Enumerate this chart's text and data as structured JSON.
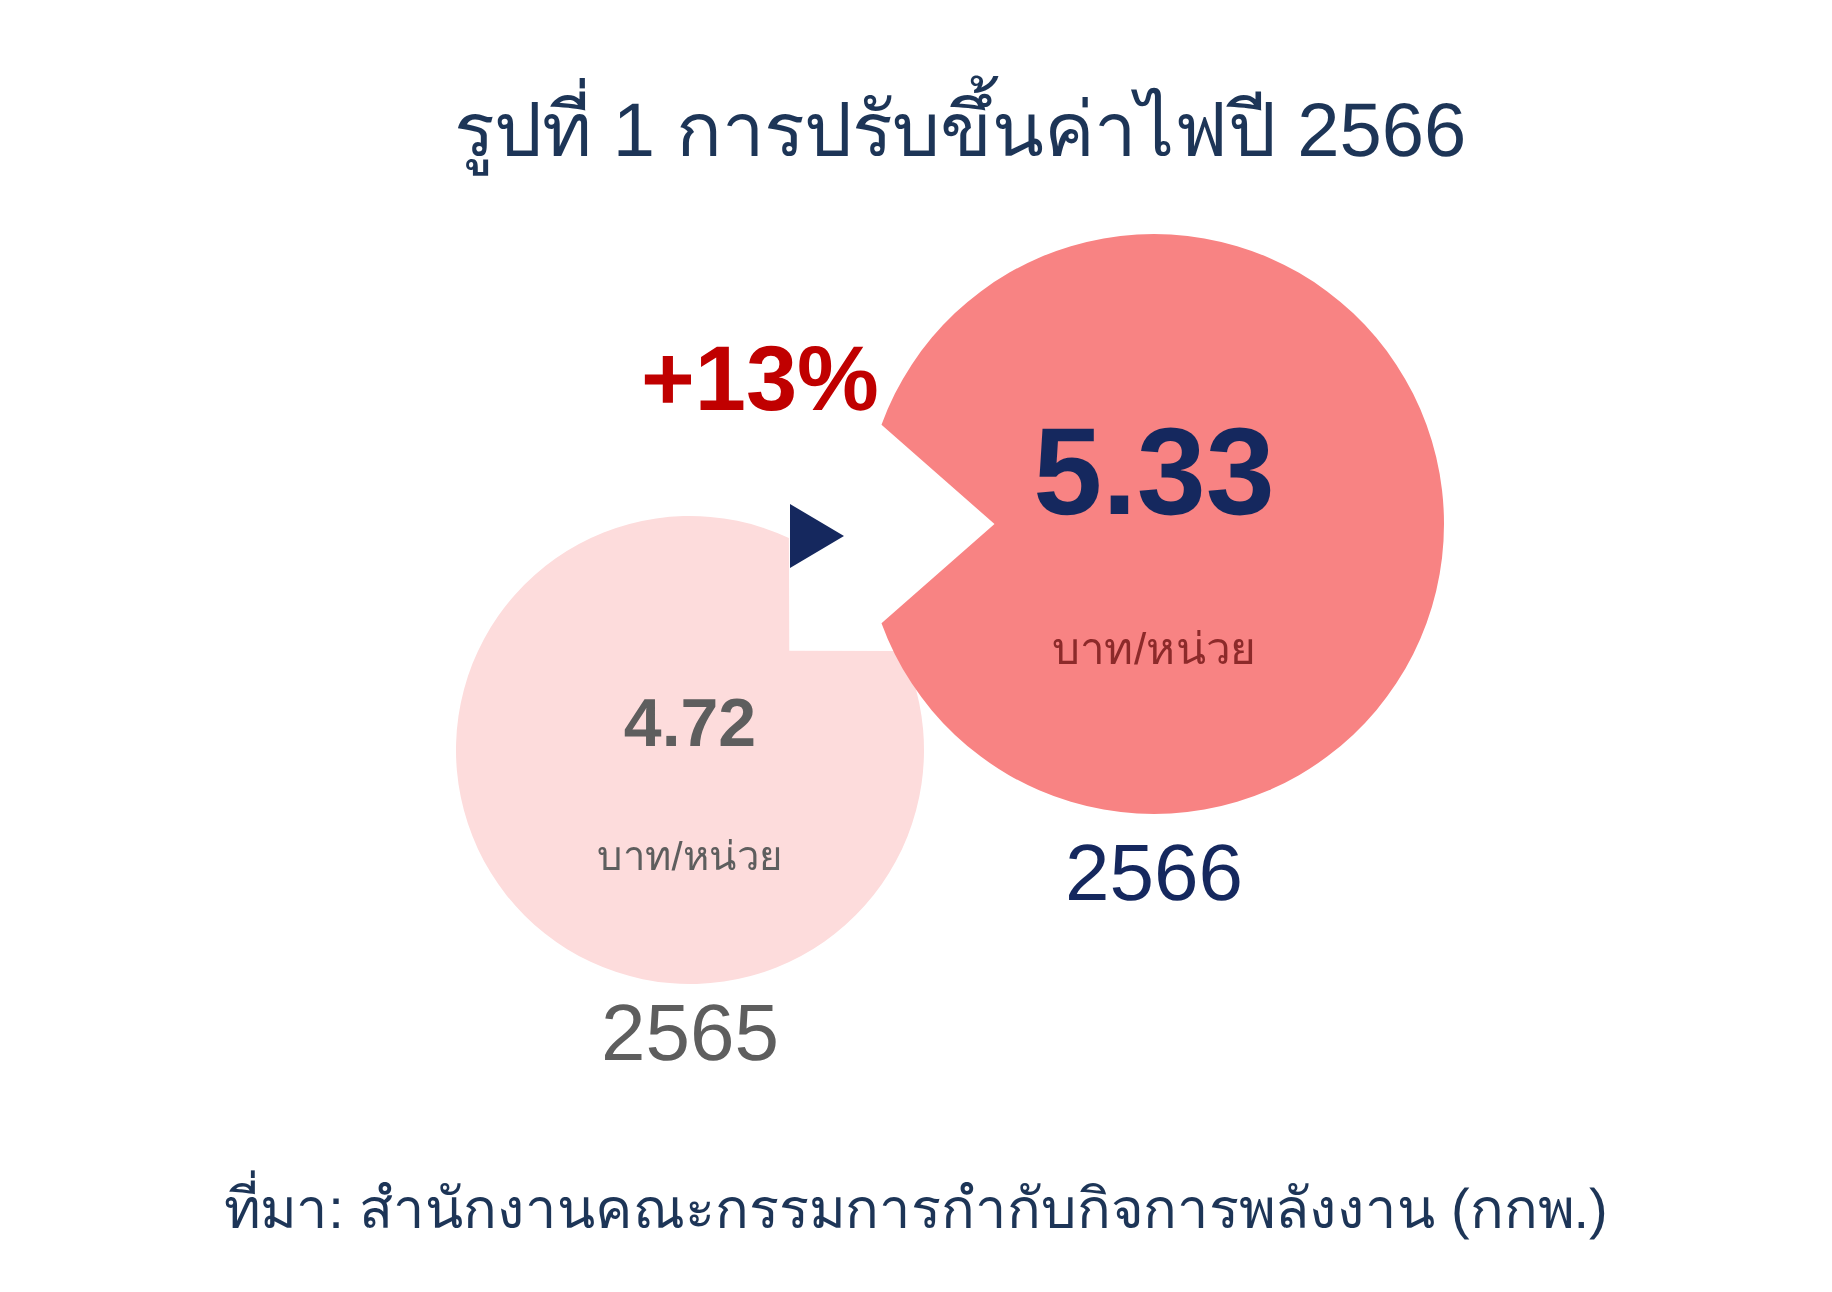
{
  "chart_data": {
    "type": "other",
    "title": "รูปที่ 1 การปรับขึ้นค่าไฟปี 2566",
    "categories": [
      "2565",
      "2566"
    ],
    "values": [
      4.72,
      5.33
    ],
    "data_labels": true,
    "colors": [
      "#fddcdc",
      "#f88383"
    ],
    "ylabel": "บาท/หน่วย",
    "annotations": [
      "+13%",
      "ที่มา: สำนักงานคณะกรรมการกำกับกิจการพลังงาน (กกพ.)"
    ]
  }
}
